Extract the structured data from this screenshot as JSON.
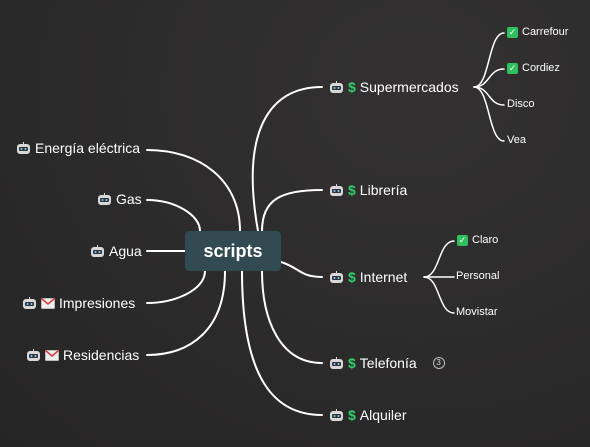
{
  "root": {
    "label": "scripts"
  },
  "left_topics": [
    {
      "label": "Energía eléctrica",
      "icons": [
        "robot-icon"
      ]
    },
    {
      "label": "Gas",
      "icons": [
        "robot-icon"
      ]
    },
    {
      "label": "Agua",
      "icons": [
        "robot-icon"
      ]
    },
    {
      "label": "Impresiones",
      "icons": [
        "robot-icon",
        "mail-icon"
      ]
    },
    {
      "label": "Residencias",
      "icons": [
        "robot-icon",
        "mail-icon"
      ]
    }
  ],
  "right_topics": [
    {
      "label": "Supermercados",
      "icons": [
        "robot-icon",
        "dollar-icon"
      ],
      "children": [
        {
          "label": "Carrefour",
          "checked": true
        },
        {
          "label": "Cordiez",
          "checked": true
        },
        {
          "label": "Disco",
          "checked": false
        },
        {
          "label": "Vea",
          "checked": false
        }
      ]
    },
    {
      "label": "Librería",
      "icons": [
        "robot-icon",
        "dollar-icon"
      ]
    },
    {
      "label": "Internet",
      "icons": [
        "robot-icon",
        "dollar-icon"
      ],
      "children": [
        {
          "label": "Claro",
          "checked": true
        },
        {
          "label": "Personal",
          "checked": false
        },
        {
          "label": "Movistar",
          "checked": false
        }
      ]
    },
    {
      "label": "Telefonía",
      "icons": [
        "robot-icon",
        "dollar-icon"
      ],
      "collapsed_count": "3"
    },
    {
      "label": "Alquiler",
      "icons": [
        "robot-icon",
        "dollar-icon"
      ]
    }
  ],
  "colors": {
    "background": "#2b2a2a",
    "root_fill": "#324a52",
    "line": "#ffffff",
    "dollar": "#2fd06b",
    "check": "#2fbf5e"
  }
}
